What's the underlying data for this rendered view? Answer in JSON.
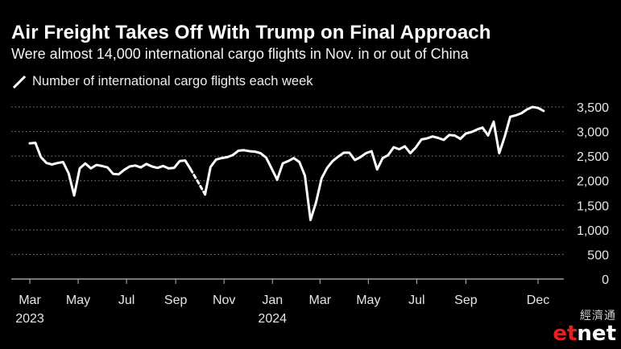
{
  "header": {
    "title": "Air Freight Takes Off With Trump on Final Approach",
    "subtitle": "Were almost 14,000 international cargo flights in Nov. in or out of China"
  },
  "legend": {
    "label": "Number of international cargo flights each week"
  },
  "watermark": {
    "chinese": "經濟通",
    "logo_e": "et",
    "logo_net": "net"
  },
  "colors": {
    "background": "#000000",
    "line": "#ffffff",
    "grid": "#8a8a8a",
    "text": "#ffffff"
  },
  "chart_data": {
    "type": "line",
    "title": "Air Freight Takes Off With Trump on Final Approach",
    "subtitle": "Were almost 14,000 international cargo flights in Nov. in or out of China",
    "ylim": [
      0,
      3500
    ],
    "yticks": [
      0,
      500,
      1000,
      1500,
      2000,
      2500,
      3000,
      3500
    ],
    "ytick_labels": [
      "0",
      "500",
      "1,000",
      "1,500",
      "2,000",
      "2,500",
      "3,000",
      "3,500"
    ],
    "y_axis_side": "right",
    "grid": "horizontal dotted",
    "xticks": [
      {
        "date": "2023-03-01",
        "label": "Mar",
        "year": "2023"
      },
      {
        "date": "2023-05-01",
        "label": "May"
      },
      {
        "date": "2023-07-01",
        "label": "Jul"
      },
      {
        "date": "2023-09-01",
        "label": "Sep"
      },
      {
        "date": "2023-11-01",
        "label": "Nov"
      },
      {
        "date": "2024-01-01",
        "label": "Jan",
        "year": "2024"
      },
      {
        "date": "2024-03-01",
        "label": "Mar"
      },
      {
        "date": "2024-05-01",
        "label": "May"
      },
      {
        "date": "2024-07-01",
        "label": "Jul"
      },
      {
        "date": "2024-09-01",
        "label": "Sep"
      },
      {
        "date": "2024-12-01",
        "label": "Dec"
      }
    ],
    "series": [
      {
        "name": "Number of international cargo flights each week",
        "dashed_segment": [
          "2023-09-30",
          "2023-10-08"
        ],
        "points": [
          [
            "2023-03-01",
            2760
          ],
          [
            "2023-03-08",
            2770
          ],
          [
            "2023-03-15",
            2480
          ],
          [
            "2023-03-22",
            2360
          ],
          [
            "2023-03-29",
            2330
          ],
          [
            "2023-04-05",
            2360
          ],
          [
            "2023-04-12",
            2380
          ],
          [
            "2023-04-19",
            2150
          ],
          [
            "2023-04-26",
            1700
          ],
          [
            "2023-05-03",
            2250
          ],
          [
            "2023-05-10",
            2350
          ],
          [
            "2023-05-17",
            2250
          ],
          [
            "2023-05-24",
            2320
          ],
          [
            "2023-05-31",
            2300
          ],
          [
            "2023-06-07",
            2270
          ],
          [
            "2023-06-14",
            2140
          ],
          [
            "2023-06-21",
            2130
          ],
          [
            "2023-06-28",
            2220
          ],
          [
            "2023-07-05",
            2290
          ],
          [
            "2023-07-12",
            2310
          ],
          [
            "2023-07-19",
            2270
          ],
          [
            "2023-07-26",
            2340
          ],
          [
            "2023-08-02",
            2290
          ],
          [
            "2023-08-09",
            2260
          ],
          [
            "2023-08-16",
            2300
          ],
          [
            "2023-08-23",
            2250
          ],
          [
            "2023-08-30",
            2260
          ],
          [
            "2023-09-06",
            2400
          ],
          [
            "2023-09-13",
            2410
          ],
          [
            "2023-09-20",
            2230
          ],
          [
            "2023-09-30",
            1950
          ],
          [
            "2023-10-08",
            1720
          ],
          [
            "2023-10-15",
            2280
          ],
          [
            "2023-10-22",
            2430
          ],
          [
            "2023-10-29",
            2460
          ],
          [
            "2023-11-05",
            2480
          ],
          [
            "2023-11-12",
            2520
          ],
          [
            "2023-11-19",
            2610
          ],
          [
            "2023-11-26",
            2620
          ],
          [
            "2023-12-03",
            2600
          ],
          [
            "2023-12-10",
            2590
          ],
          [
            "2023-12-17",
            2560
          ],
          [
            "2023-12-24",
            2470
          ],
          [
            "2023-12-31",
            2250
          ],
          [
            "2024-01-07",
            2020
          ],
          [
            "2024-01-14",
            2350
          ],
          [
            "2024-01-21",
            2400
          ],
          [
            "2024-01-28",
            2460
          ],
          [
            "2024-02-04",
            2380
          ],
          [
            "2024-02-11",
            2100
          ],
          [
            "2024-02-18",
            1200
          ],
          [
            "2024-02-25",
            1560
          ],
          [
            "2024-03-03",
            2050
          ],
          [
            "2024-03-10",
            2260
          ],
          [
            "2024-03-17",
            2400
          ],
          [
            "2024-03-24",
            2490
          ],
          [
            "2024-03-31",
            2570
          ],
          [
            "2024-04-07",
            2570
          ],
          [
            "2024-04-14",
            2420
          ],
          [
            "2024-04-21",
            2480
          ],
          [
            "2024-04-28",
            2560
          ],
          [
            "2024-05-05",
            2600
          ],
          [
            "2024-05-12",
            2230
          ],
          [
            "2024-05-19",
            2460
          ],
          [
            "2024-05-26",
            2520
          ],
          [
            "2024-06-02",
            2680
          ],
          [
            "2024-06-09",
            2640
          ],
          [
            "2024-06-16",
            2700
          ],
          [
            "2024-06-23",
            2560
          ],
          [
            "2024-06-30",
            2680
          ],
          [
            "2024-07-07",
            2840
          ],
          [
            "2024-07-14",
            2860
          ],
          [
            "2024-07-21",
            2900
          ],
          [
            "2024-07-28",
            2870
          ],
          [
            "2024-08-04",
            2830
          ],
          [
            "2024-08-11",
            2930
          ],
          [
            "2024-08-18",
            2920
          ],
          [
            "2024-08-25",
            2850
          ],
          [
            "2024-09-01",
            2960
          ],
          [
            "2024-09-08",
            2990
          ],
          [
            "2024-09-15",
            3040
          ],
          [
            "2024-09-22",
            3080
          ],
          [
            "2024-09-29",
            2920
          ],
          [
            "2024-10-06",
            3200
          ],
          [
            "2024-10-13",
            2560
          ],
          [
            "2024-10-20",
            2900
          ],
          [
            "2024-10-27",
            3300
          ],
          [
            "2024-11-03",
            3330
          ],
          [
            "2024-11-10",
            3370
          ],
          [
            "2024-11-17",
            3450
          ],
          [
            "2024-11-24",
            3500
          ],
          [
            "2024-12-01",
            3480
          ],
          [
            "2024-12-08",
            3420
          ]
        ]
      }
    ]
  }
}
